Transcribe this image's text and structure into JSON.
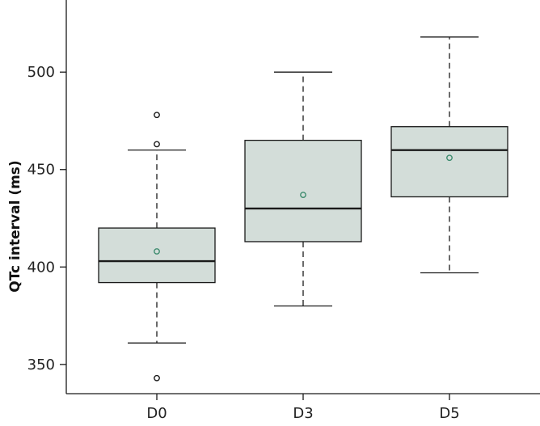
{
  "chart_data": {
    "type": "boxplot",
    "title": "",
    "xlabel": "",
    "ylabel": "QTc interval (ms)",
    "ylim": [
      335,
      537
    ],
    "yticks": [
      350,
      400,
      450,
      500
    ],
    "grid": false,
    "categories": [
      "D0",
      "D3",
      "D5"
    ],
    "boxes": [
      {
        "label": "D0",
        "whisker_low": 361,
        "q1": 392,
        "median": 403,
        "q3": 420,
        "whisker_high": 460,
        "mean": 408,
        "outliers": [
          343,
          463,
          478
        ]
      },
      {
        "label": "D3",
        "whisker_low": 380,
        "q1": 413,
        "median": 430,
        "q3": 465,
        "whisker_high": 500,
        "mean": 437,
        "outliers": []
      },
      {
        "label": "D5",
        "whisker_low": 397,
        "q1": 436,
        "median": 460,
        "q3": 472,
        "whisker_high": 518,
        "mean": 456,
        "outliers": []
      }
    ],
    "colors": {
      "box_fill": "#d3ddd9",
      "box_stroke": "#1a1a1a",
      "mean_marker": "#3d8b6e",
      "outlier_marker": "#1a1a1a"
    }
  }
}
